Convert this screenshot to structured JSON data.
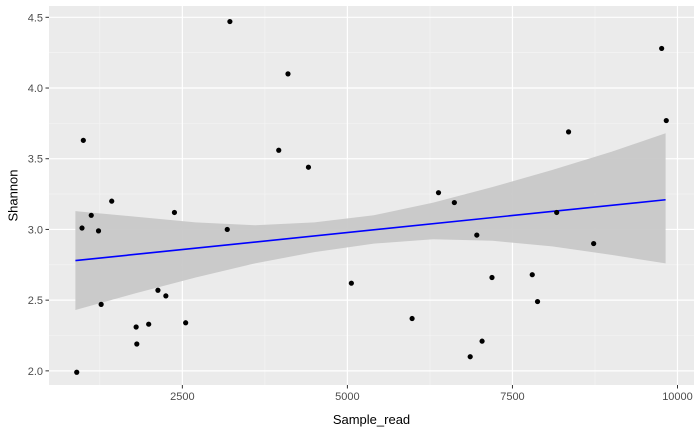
{
  "chart_data": {
    "type": "scatter",
    "title": "",
    "xlabel": "Sample_read",
    "ylabel": "Shannon",
    "xlim": [
      480,
      10250
    ],
    "ylim": [
      1.9,
      4.58
    ],
    "x_ticks": [
      2500,
      5000,
      7500,
      10000
    ],
    "x_tick_labels": [
      "2500",
      "5000",
      "7500",
      "10000"
    ],
    "y_ticks": [
      2.0,
      2.5,
      3.0,
      3.5,
      4.0,
      4.5
    ],
    "y_tick_labels": [
      "2.0",
      "2.5",
      "3.0",
      "3.5",
      "4.0",
      "4.5"
    ],
    "grid": true,
    "legend": "none",
    "points": [
      {
        "x": 900,
        "y": 1.99
      },
      {
        "x": 1000,
        "y": 3.63
      },
      {
        "x": 980,
        "y": 3.01
      },
      {
        "x": 1120,
        "y": 3.1
      },
      {
        "x": 1230,
        "y": 2.99
      },
      {
        "x": 1270,
        "y": 2.47
      },
      {
        "x": 1430,
        "y": 3.2
      },
      {
        "x": 1800,
        "y": 2.31
      },
      {
        "x": 1810,
        "y": 2.19
      },
      {
        "x": 1990,
        "y": 2.33
      },
      {
        "x": 2130,
        "y": 2.57
      },
      {
        "x": 2250,
        "y": 2.53
      },
      {
        "x": 2380,
        "y": 3.12
      },
      {
        "x": 2550,
        "y": 2.34
      },
      {
        "x": 3180,
        "y": 3.0
      },
      {
        "x": 3220,
        "y": 4.47
      },
      {
        "x": 3960,
        "y": 3.56
      },
      {
        "x": 4100,
        "y": 4.1
      },
      {
        "x": 4410,
        "y": 3.44
      },
      {
        "x": 5060,
        "y": 2.62
      },
      {
        "x": 5980,
        "y": 2.37
      },
      {
        "x": 6380,
        "y": 3.26
      },
      {
        "x": 6620,
        "y": 3.19
      },
      {
        "x": 6860,
        "y": 2.1
      },
      {
        "x": 6960,
        "y": 2.96
      },
      {
        "x": 7040,
        "y": 2.21
      },
      {
        "x": 7190,
        "y": 2.66
      },
      {
        "x": 7800,
        "y": 2.68
      },
      {
        "x": 7880,
        "y": 2.49
      },
      {
        "x": 8170,
        "y": 3.12
      },
      {
        "x": 8350,
        "y": 3.69
      },
      {
        "x": 8730,
        "y": 2.9
      },
      {
        "x": 9760,
        "y": 4.28
      },
      {
        "x": 9830,
        "y": 3.77
      }
    ],
    "smooth": {
      "method": "linear",
      "x": [
        880,
        9820
      ],
      "y": [
        2.78,
        3.21
      ],
      "ci_lower": [
        2.43,
        2.76
      ],
      "ci_upper": [
        3.13,
        3.68
      ],
      "ci_x": [
        880,
        1800,
        2700,
        3600,
        4500,
        5400,
        6300,
        7200,
        8100,
        9000,
        9820
      ],
      "ci_lo": [
        2.43,
        2.55,
        2.66,
        2.76,
        2.84,
        2.9,
        2.93,
        2.92,
        2.88,
        2.82,
        2.76
      ],
      "ci_hi": [
        3.13,
        3.09,
        3.05,
        3.03,
        3.05,
        3.1,
        3.19,
        3.3,
        3.42,
        3.55,
        3.68
      ],
      "line_color": "#0000ff",
      "band_color": "#c8c8c8"
    },
    "colors": {
      "panel": "#ebebeb",
      "grid_major": "#ffffff",
      "point": "#000000",
      "axis_text": "#4d4d4d"
    }
  }
}
